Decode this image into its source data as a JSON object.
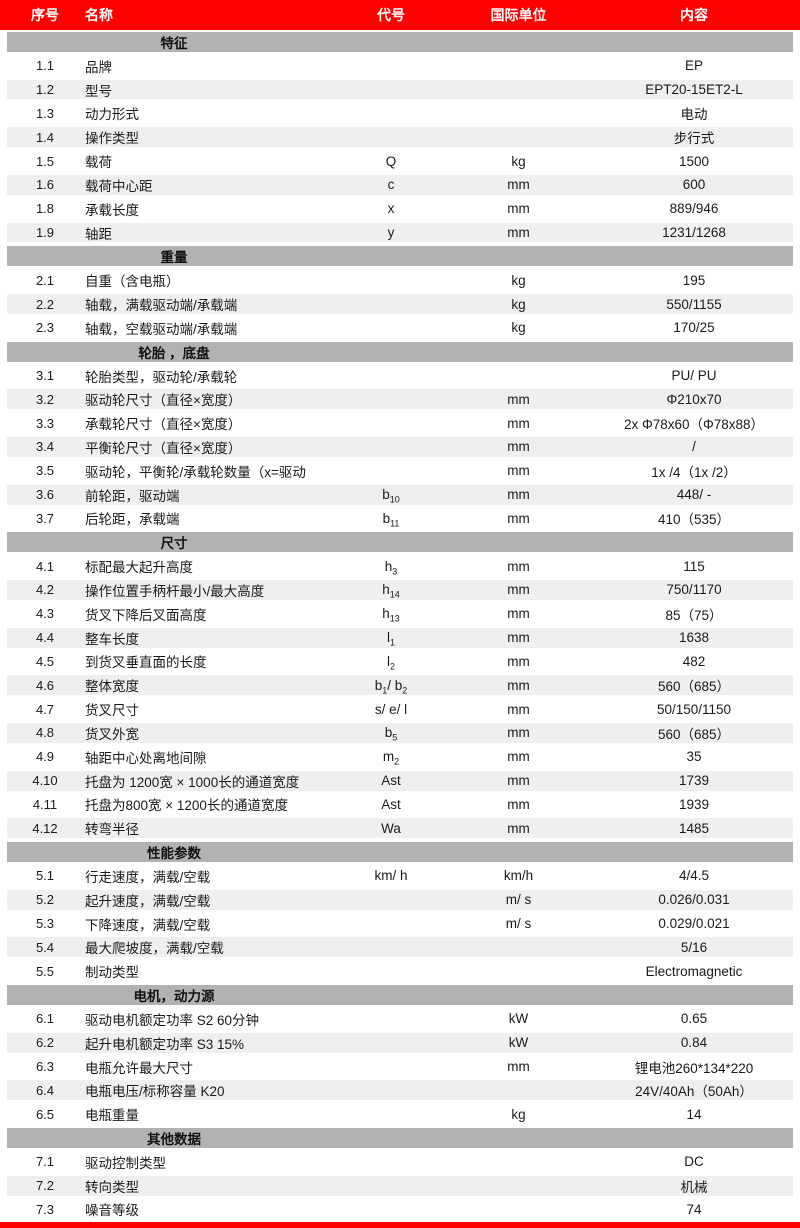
{
  "colors": {
    "accent_red": "#fe0000",
    "section_bar_gray": "#b2b2b2",
    "alt_row_gray": "#efefef"
  },
  "header": {
    "columns": [
      {
        "label": "序号"
      },
      {
        "label": "名称"
      },
      {
        "label": "代号"
      },
      {
        "label": "国际单位"
      },
      {
        "label": "内容"
      }
    ]
  },
  "sections": [
    {
      "title": "特征",
      "rows": [
        {
          "no": "1.1",
          "name": "品牌",
          "code": "",
          "unit": "",
          "value": "EP"
        },
        {
          "no": "1.2",
          "name": "型号",
          "code": "",
          "unit": "",
          "value": "EPT20-15ET2-L"
        },
        {
          "no": "1.3",
          "name": "动力形式",
          "code": "",
          "unit": "",
          "value": "电动"
        },
        {
          "no": "1.4",
          "name": "操作类型",
          "code": "",
          "unit": "",
          "value": "步行式"
        },
        {
          "no": "1.5",
          "name": "载荷",
          "code": "Q",
          "unit": "kg",
          "value": "1500"
        },
        {
          "no": "1.6",
          "name": "载荷中心距",
          "code": "c",
          "unit": "mm",
          "value": "600"
        },
        {
          "no": "1.8",
          "name": "承载长度",
          "code": "x",
          "unit": "mm",
          "value": "889/946"
        },
        {
          "no": "1.9",
          "name": "轴距",
          "code": "y",
          "unit": "mm",
          "value": "1231/1268"
        }
      ]
    },
    {
      "title": "重量",
      "rows": [
        {
          "no": "2.1",
          "name": "自重（含电瓶）",
          "code": "",
          "unit": "kg",
          "value": "195"
        },
        {
          "no": "2.2",
          "name": "轴载，满载驱动端/承载端",
          "code": "",
          "unit": "kg",
          "value": "550/1155"
        },
        {
          "no": "2.3",
          "name": "轴载，空载驱动端/承载端",
          "code": "",
          "unit": "kg",
          "value": "170/25"
        }
      ]
    },
    {
      "title": "轮胎 ，底盘",
      "rows": [
        {
          "no": "3.1",
          "name": "轮胎类型，驱动轮/承载轮",
          "code": "",
          "unit": "",
          "value": "PU/ PU"
        },
        {
          "no": "3.2",
          "name": "驱动轮尺寸（直径×宽度）",
          "code": "",
          "unit": "mm",
          "value": "Φ210x70"
        },
        {
          "no": "3.3",
          "name": "承载轮尺寸（直径×宽度）",
          "code": "",
          "unit": "mm",
          "value": "2x Φ78x60（Φ78x88）"
        },
        {
          "no": "3.4",
          "name": "平衡轮尺寸（直径×宽度）",
          "code": "",
          "unit": "mm",
          "value": "/"
        },
        {
          "no": "3.5",
          "name": "驱动轮，平衡轮/承载轮数量（x=驱动",
          "code": "",
          "unit": "mm",
          "value": "1x /4（1x /2）"
        },
        {
          "no": "3.6",
          "name": "前轮距，驱动端",
          "code": "b~10~",
          "unit": "mm",
          "value": "448/ -"
        },
        {
          "no": "3.7",
          "name": "后轮距，承载端",
          "code": "b~11~",
          "unit": "mm",
          "value": "410（535）"
        }
      ]
    },
    {
      "title": "尺寸",
      "rows": [
        {
          "no": "4.1",
          "name": "标配最大起升高度",
          "code": "h~3~",
          "unit": "mm",
          "value": "115"
        },
        {
          "no": "4.2",
          "name": "操作位置手柄杆最小/最大高度",
          "code": "h~14~",
          "unit": "mm",
          "value": "750/1170"
        },
        {
          "no": "4.3",
          "name": "货叉下降后叉面高度",
          "code": "h~13~",
          "unit": "mm",
          "value": "85（75）"
        },
        {
          "no": "4.4",
          "name": "整车长度",
          "code": "l~1~",
          "unit": "mm",
          "value": "1638"
        },
        {
          "no": "4.5",
          "name": "到货叉垂直面的长度",
          "code": "l~2~",
          "unit": "mm",
          "value": "482"
        },
        {
          "no": "4.6",
          "name": "整体宽度",
          "code": "b~1~/ b~2~",
          "unit": "mm",
          "value": "560（685）"
        },
        {
          "no": "4.7",
          "name": "货叉尺寸",
          "code": "s/ e/ l",
          "unit": "mm",
          "value": "50/150/1150"
        },
        {
          "no": "4.8",
          "name": "货叉外宽",
          "code": "b~5~",
          "unit": "mm",
          "value": "560（685）"
        },
        {
          "no": "4.9",
          "name": "轴距中心处离地间隙",
          "code": "m~2~",
          "unit": "mm",
          "value": "35"
        },
        {
          "no": "4.10",
          "name": "托盘为 1200宽 × 1000长的通道宽度",
          "code": "Ast",
          "unit": "mm",
          "value": "1739"
        },
        {
          "no": "4.11",
          "name": "托盘为800宽 × 1200长的通道宽度",
          "code": "Ast",
          "unit": "mm",
          "value": "1939"
        },
        {
          "no": "4.12",
          "name": "转弯半径",
          "code": "Wa",
          "unit": "mm",
          "value": "1485"
        }
      ]
    },
    {
      "title": "性能参数",
      "rows": [
        {
          "no": "5.1",
          "name": "行走速度，满载/空载",
          "code": "km/ h",
          "unit": "km/h",
          "value": "4/4.5"
        },
        {
          "no": "5.2",
          "name": "起升速度，满载/空载",
          "code": "",
          "unit": "m/ s",
          "value": "0.026/0.031"
        },
        {
          "no": "5.3",
          "name": "下降速度，满载/空载",
          "code": "",
          "unit": "m/ s",
          "value": "0.029/0.021"
        },
        {
          "no": "5.4",
          "name": "最大爬坡度，满载/空载",
          "code": "",
          "unit": "",
          "value": "5/16"
        },
        {
          "no": "5.5",
          "name": "制动类型",
          "code": "",
          "unit": "",
          "value": "Electromagnetic"
        }
      ]
    },
    {
      "title": "电机，动力源",
      "rows": [
        {
          "no": "6.1",
          "name": "驱动电机额定功率 S2 60分钟",
          "code": "",
          "unit": "kW",
          "value": "0.65"
        },
        {
          "no": "6.2",
          "name": "起升电机额定功率 S3 15%",
          "code": "",
          "unit": "kW",
          "value": "0.84"
        },
        {
          "no": "6.3",
          "name": "电瓶允许最大尺寸",
          "code": "",
          "unit": "mm",
          "value": "锂电池260*134*220"
        },
        {
          "no": "6.4",
          "name": "电瓶电压/标称容量 K20",
          "code": "",
          "unit": "",
          "value": "24V/40Ah（50Ah）"
        },
        {
          "no": "6.5",
          "name": "电瓶重量",
          "code": "",
          "unit": "kg",
          "value": "14"
        }
      ]
    },
    {
      "title": "其他数据",
      "rows": [
        {
          "no": "7.1",
          "name": "驱动控制类型",
          "code": "",
          "unit": "",
          "value": "DC"
        },
        {
          "no": "7.2",
          "name": "转向类型",
          "code": "",
          "unit": "",
          "value": "机械"
        },
        {
          "no": "7.3",
          "name": "噪音等级",
          "code": "",
          "unit": "",
          "value": "74"
        }
      ]
    }
  ]
}
